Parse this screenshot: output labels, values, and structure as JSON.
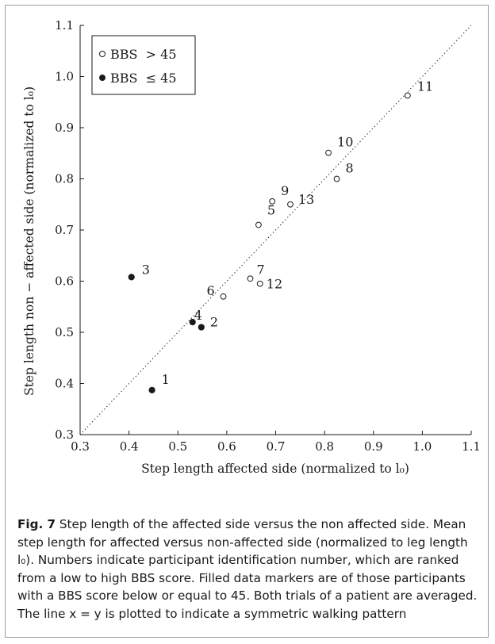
{
  "chart_data": {
    "type": "scatter",
    "xlabel": "Step length affected side (normalized to l₀)",
    "ylabel": "Step length non − affected side (normalized to l₀)",
    "xlim": [
      0.3,
      1.1
    ],
    "ylim": [
      0.3,
      1.1
    ],
    "xticks": [
      "0.3",
      "0.4",
      "0.5",
      "0.6",
      "0.7",
      "0.8",
      "0.9",
      "1.0",
      "1.1"
    ],
    "yticks": [
      "0.3",
      "0.4",
      "0.5",
      "0.6",
      "0.7",
      "0.8",
      "0.9",
      "1.0",
      "1.1"
    ],
    "legend_position": "top-left",
    "reference_line": "x = y (dotted)",
    "grid": false,
    "series": [
      {
        "name": "BBS  > 45",
        "marker": "open-circle",
        "points": [
          {
            "label": "5",
            "x": 0.665,
            "y": 0.71
          },
          {
            "label": "6",
            "x": 0.593,
            "y": 0.57
          },
          {
            "label": "7",
            "x": 0.648,
            "y": 0.605
          },
          {
            "label": "8",
            "x": 0.825,
            "y": 0.8
          },
          {
            "label": "9",
            "x": 0.693,
            "y": 0.756
          },
          {
            "label": "10",
            "x": 0.808,
            "y": 0.851
          },
          {
            "label": "11",
            "x": 0.97,
            "y": 0.963
          },
          {
            "label": "12",
            "x": 0.668,
            "y": 0.595
          },
          {
            "label": "13",
            "x": 0.73,
            "y": 0.75
          }
        ]
      },
      {
        "name": "BBS  ≤ 45",
        "marker": "filled-circle",
        "points": [
          {
            "label": "1",
            "x": 0.447,
            "y": 0.387
          },
          {
            "label": "2",
            "x": 0.548,
            "y": 0.51
          },
          {
            "label": "3",
            "x": 0.405,
            "y": 0.608
          },
          {
            "label": "4",
            "x": 0.53,
            "y": 0.52
          }
        ]
      }
    ]
  },
  "caption": {
    "label": "Fig. 7",
    "text": " Step length of the affected side versus the non affected side. Mean step length for affected versus non-affected side (normalized to leg length l₀). Numbers indicate participant identification number, which are ranked from a low to high BBS score. Filled data markers are of those participants with a BBS score below or equal to 45. Both trials of a patient are averaged. The line x = y is plotted to indicate a symmetric walking pattern"
  },
  "colors": {
    "ink": "#1a1a1a",
    "frame": "#9a9a9a"
  }
}
